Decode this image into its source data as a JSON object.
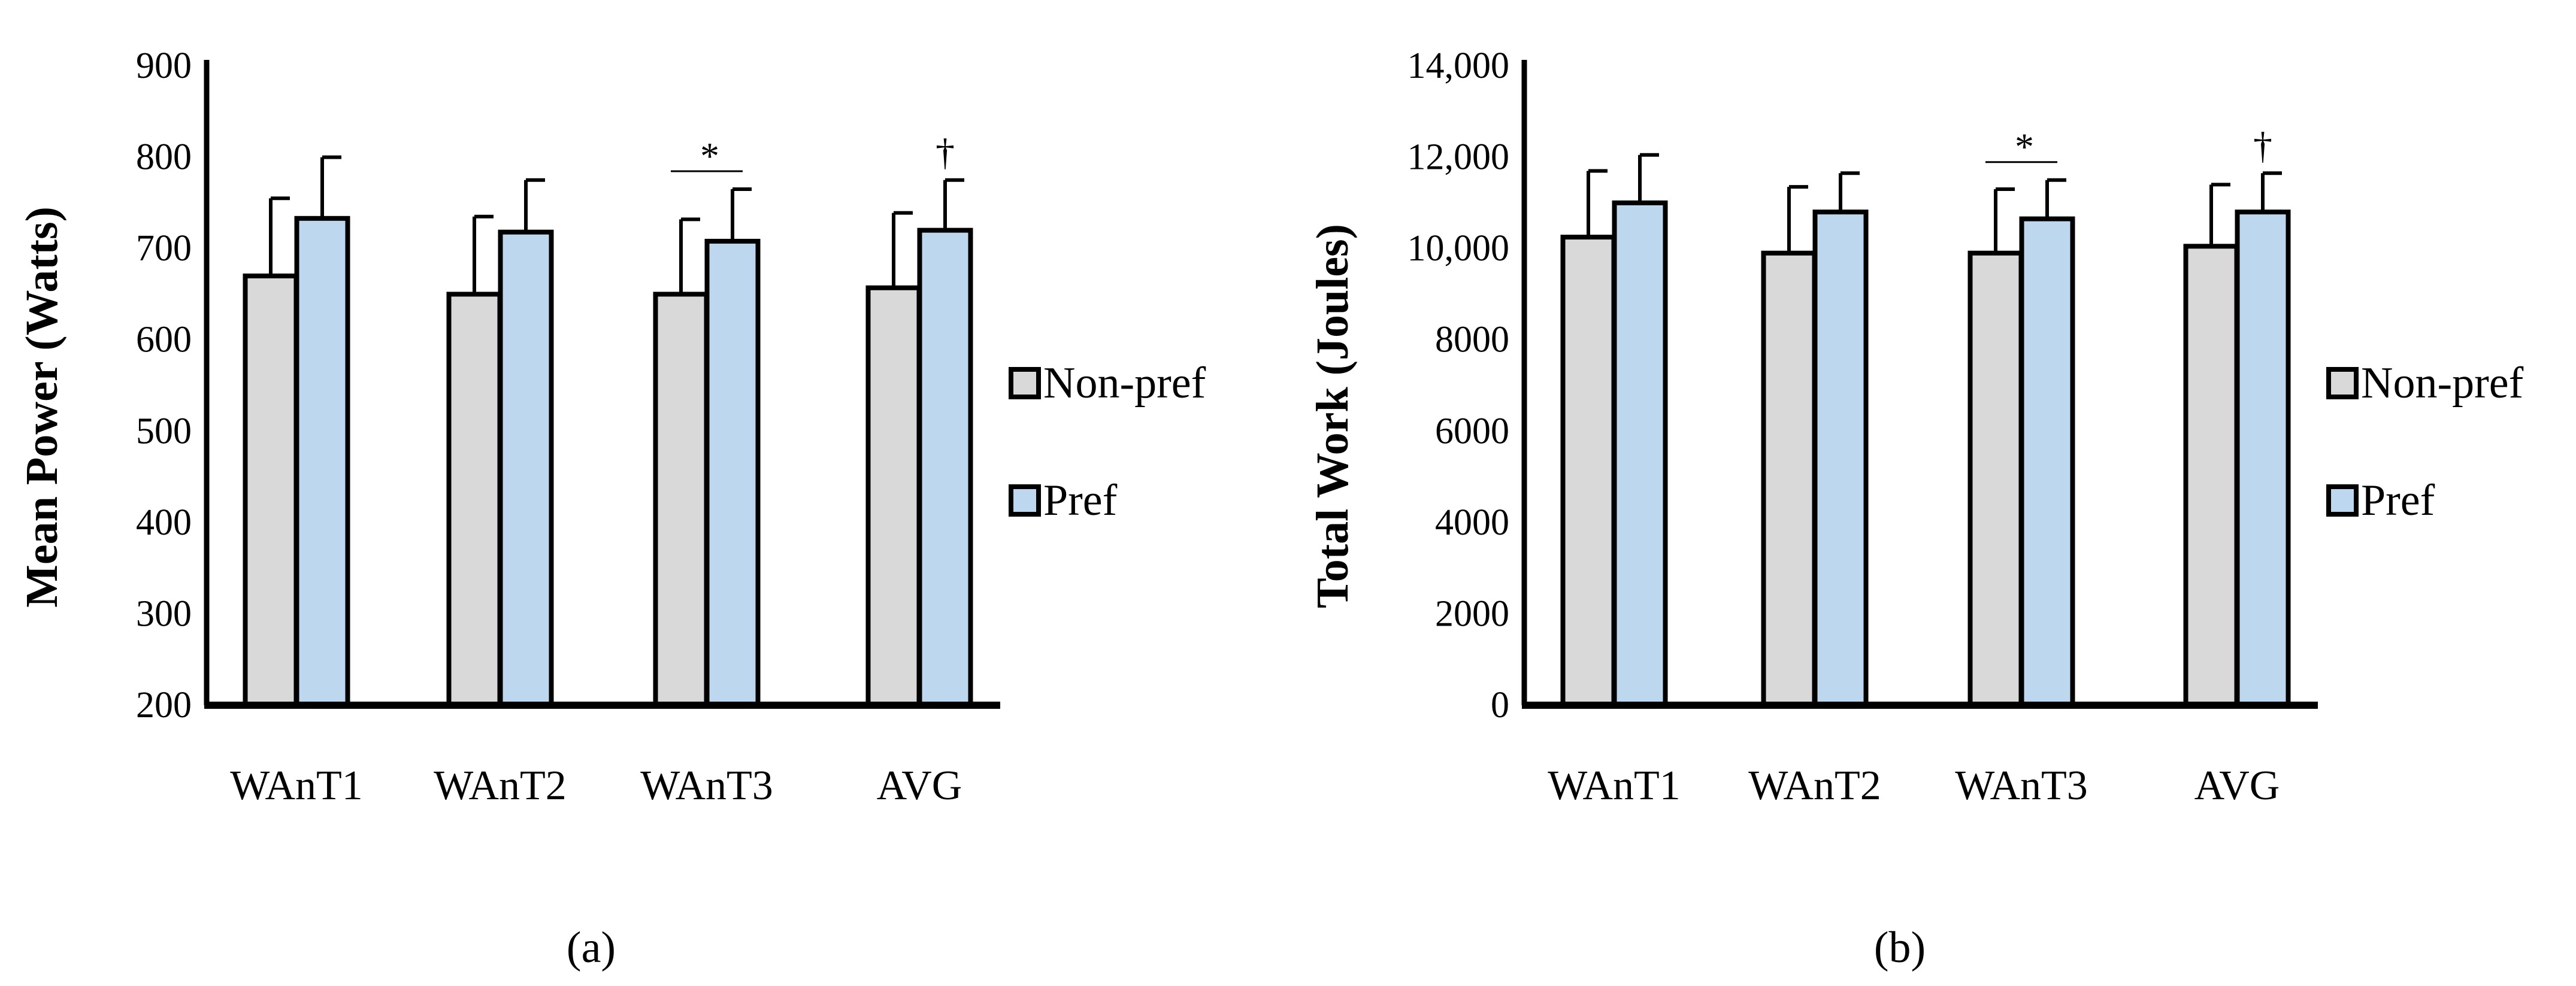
{
  "colors": {
    "nonpref": "#d9d9d9",
    "pref": "#bdd7ee",
    "stroke": "#000000",
    "background": "#ffffff"
  },
  "chart_data": [
    {
      "type": "bar",
      "panel": "a",
      "caption": "(a)",
      "ylabel": "Mean Power (Watts)",
      "xlabel": "",
      "ylim": [
        200,
        900
      ],
      "yticks": [
        200,
        300,
        400,
        500,
        600,
        700,
        800,
        900
      ],
      "ytick_labels": [
        "200",
        "300",
        "400",
        "500",
        "600",
        "700",
        "800",
        "900"
      ],
      "categories": [
        "WAnT1",
        "WAnT2",
        "WAnT3",
        "AVG"
      ],
      "series": [
        {
          "name": "Non-pref",
          "values": [
            670,
            650,
            650,
            657
          ],
          "errors": [
            85,
            85,
            82,
            82
          ]
        },
        {
          "name": "Pref",
          "values": [
            733,
            718,
            708,
            720
          ],
          "errors": [
            67,
            57,
            57,
            55
          ]
        }
      ],
      "annotations": [
        {
          "category": "WAnT3",
          "symbol": "*",
          "type": "bracket"
        },
        {
          "category": "AVG",
          "symbol": "†",
          "type": "marker"
        }
      ],
      "legend_position": "right"
    },
    {
      "type": "bar",
      "panel": "b",
      "caption": "(b)",
      "ylabel": "Total Work (Joules)",
      "xlabel": "",
      "ylim": [
        0,
        14000
      ],
      "yticks": [
        0,
        2000,
        4000,
        6000,
        8000,
        10000,
        12000,
        14000
      ],
      "ytick_labels": [
        "0",
        "2000",
        "4000",
        "6000",
        "8000",
        "10,000",
        "12,000",
        "14,000"
      ],
      "categories": [
        "WAnT1",
        "WAnT2",
        "WAnT3",
        "AVG"
      ],
      "series": [
        {
          "name": "Non-pref",
          "values": [
            10250,
            9900,
            9900,
            10050
          ],
          "errors": [
            1450,
            1450,
            1400,
            1350
          ]
        },
        {
          "name": "Pref",
          "values": [
            11000,
            10800,
            10650,
            10800
          ],
          "errors": [
            1050,
            850,
            850,
            850
          ]
        }
      ],
      "annotations": [
        {
          "category": "WAnT3",
          "symbol": "*",
          "type": "bracket"
        },
        {
          "category": "AVG",
          "symbol": "†",
          "type": "marker"
        }
      ],
      "legend_position": "right"
    }
  ]
}
